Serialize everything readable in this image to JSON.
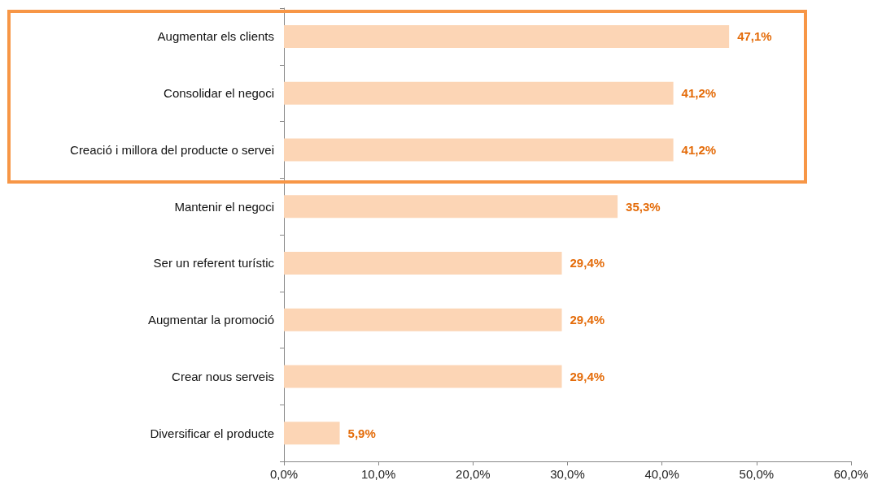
{
  "chart_data": {
    "type": "bar",
    "orientation": "horizontal",
    "categories": [
      "Augmentar els clients",
      "Consolidar el negoci",
      "Creació i millora del producte o servei",
      "Mantenir el negoci",
      "Ser un referent turístic",
      "Augmentar la promoció",
      "Crear nous serveis",
      "Diversificar el producte"
    ],
    "values": [
      47.1,
      41.2,
      41.2,
      35.3,
      29.4,
      29.4,
      29.4,
      5.9
    ],
    "value_labels": [
      "47,1%",
      "41,2%",
      "41,2%",
      "35,3%",
      "29,4%",
      "29,4%",
      "29,4%",
      "5,9%"
    ],
    "color": "#fcd5b5",
    "xlim": [
      0,
      60
    ],
    "xticks": [
      {
        "value": 0,
        "label": "0,0%"
      },
      {
        "value": 10,
        "label": "10,0%"
      },
      {
        "value": 20,
        "label": "20,0%"
      },
      {
        "value": 30,
        "label": "30,0%"
      },
      {
        "value": 40,
        "label": "40,0%"
      },
      {
        "value": 50,
        "label": "50,0%"
      },
      {
        "value": 60,
        "label": "60,0%"
      }
    ],
    "grid": false
  }
}
